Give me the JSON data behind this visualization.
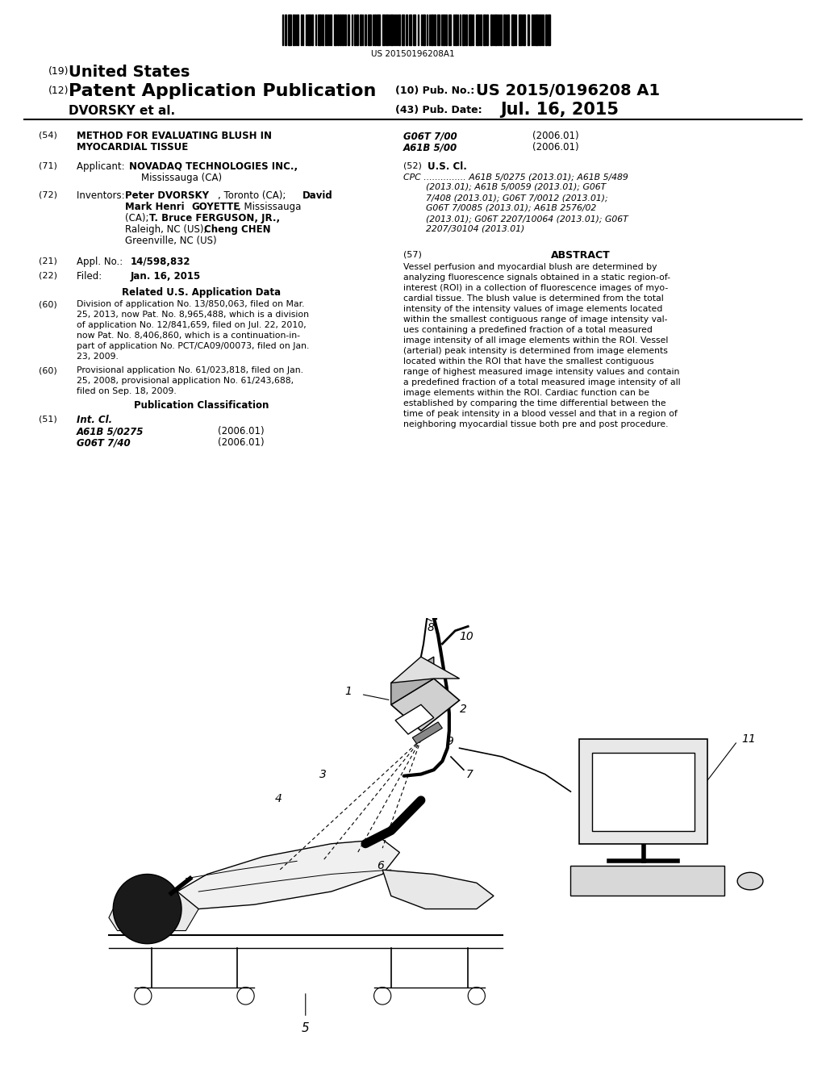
{
  "background_color": "#ffffff",
  "barcode_text": "US 20150196208A1",
  "title_19": "(19) United States",
  "title_12": "(12) Patent Application Publication",
  "pub_no_label": "(10) Pub. No.:",
  "pub_no": "US 2015/0196208 A1",
  "inventor_label": "DVORSKY et al.",
  "pub_date_label": "(43) Pub. Date:",
  "pub_date": "Jul. 16, 2015",
  "section54_title1": "METHOD FOR EVALUATING BLUSH IN",
  "section54_title2": "MYOCARDIAL TISSUE",
  "section60a_text": "Division of application No. 13/850,063, filed on Mar.\n25, 2013, now Pat. No. 8,965,488, which is a division\nof application No. 12/841,659, filed on Jul. 22, 2010,\nnow Pat. No. 8,406,860, which is a continuation-in-\npart of application No. PCT/CA09/00073, filed on Jan.\n23, 2009.",
  "section60b_text": "Provisional application No. 61/023,818, filed on Jan.\n25, 2008, provisional application No. 61/243,688,\nfiled on Sep. 18, 2009.",
  "abstract_text": "Vessel perfusion and myocardial blush are determined by\nanalyzing fluorescence signals obtained in a static region-of-\ninterest (ROI) in a collection of fluorescence images of myo-\ncardial tissue. The blush value is determined from the total\nintensity of the intensity values of image elements located\nwithin the smallest contiguous range of image intensity val-\nues containing a predefined fraction of a total measured\nimage intensity of all image elements within the ROI. Vessel\n(arterial) peak intensity is determined from image elements\nlocated within the ROI that have the smallest contiguous\nrange of highest measured image intensity values and contain\na predefined fraction of a total measured image intensity of all\nimage elements within the ROI. Cardiac function can be\nestablished by comparing the time differential between the\ntime of peak intensity in a blood vessel and that in a region of\nneighboring myocardial tissue both pre and post procedure."
}
